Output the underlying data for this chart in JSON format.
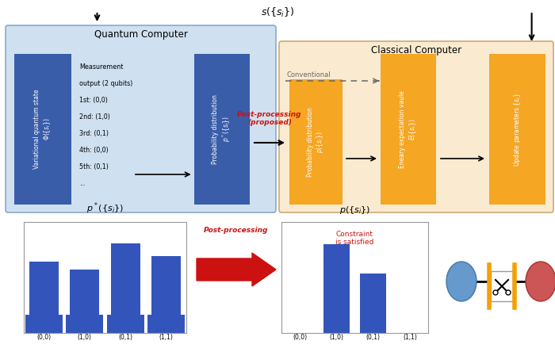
{
  "title": "$s(\\{s_i\\})$",
  "qc_label": "Quantum Computer",
  "cc_label": "Classical Computer",
  "conventional_label": "Conventional",
  "post_proc_proposed": "Post-processing\n(proposed)",
  "post_proc_label": "Post-processing",
  "constraint_label": "Constraint\nis satisfied",
  "vqs_line1": "Variational quantum state",
  "vqs_line2": "$\\Phi(\\{s_i\\})$",
  "prob_dist_label": "Probability distribution",
  "prob_dist_qc_math": "$p^*(\\{s_i\\})$",
  "prob_dist_cc_math": "$p(\\{s_i\\})$",
  "energy_label": "Eneary expectation vaule",
  "energy_math": "$E(\\{s_i\\})$",
  "update_label": "Update parameters",
  "update_math": "$\\{s_i\\}$",
  "meas_lines": [
    "Measurement",
    "output (2 qubits)",
    "1st: (0,0)",
    "2nd: (1,0)",
    "3rd: (0,1)",
    "4th: (0,0)",
    "5th: (0,1)",
    "..."
  ],
  "bar1_vals": [
    0.2,
    0.17,
    0.27,
    0.22
  ],
  "bar1_base": 0.07,
  "bar2_vals": [
    0.0,
    0.52,
    0.35,
    0.0
  ],
  "bar_labels": [
    "(0,0)",
    "(1,0)",
    "(0,1)",
    "(1,1)"
  ],
  "blue_color": "#3a5daa",
  "orange_color": "#f5a623",
  "red_color": "#cc1111",
  "bar_blue": "#3355bb",
  "qc_bg": "#cfe0f0",
  "qc_edge": "#8aaac8",
  "cc_bg": "#faebd0",
  "cc_edge": "#ccaa77",
  "arrow_color": "#111111",
  "node_blue": "#6699cc",
  "node_red": "#cc5555",
  "scissors_orange": "#f5a000"
}
